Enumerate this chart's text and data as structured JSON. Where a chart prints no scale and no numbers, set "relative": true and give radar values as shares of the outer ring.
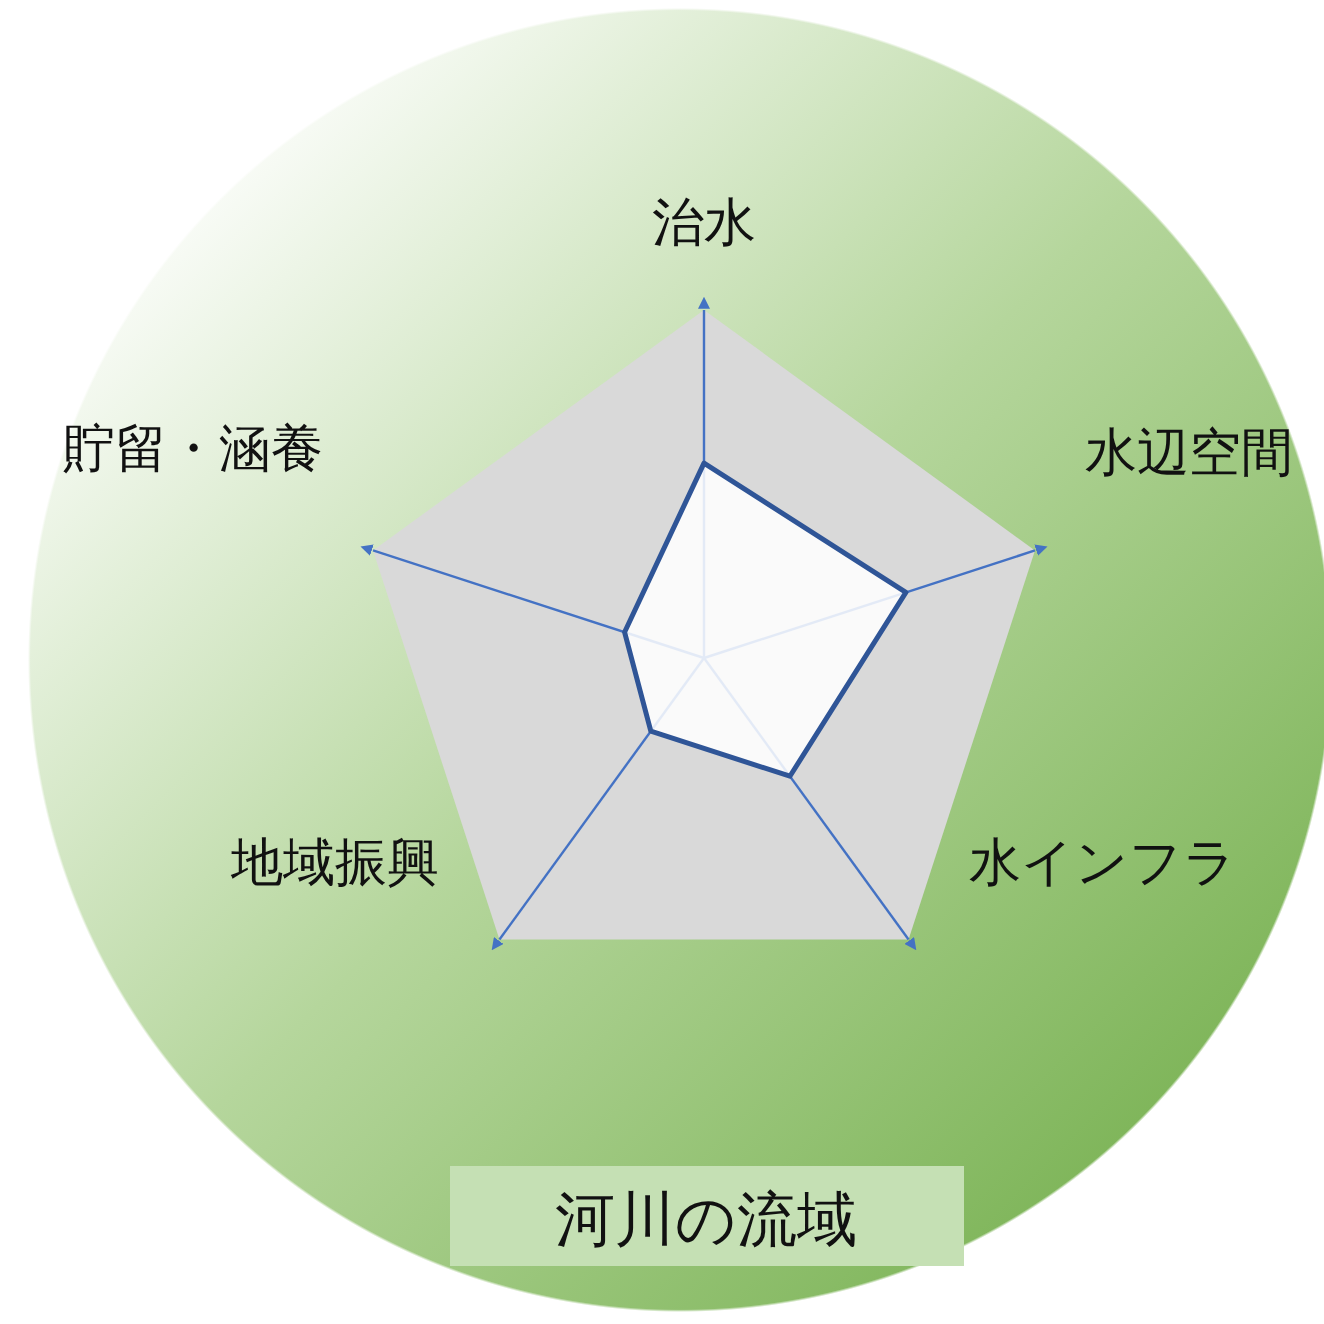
{
  "chart_data": {
    "type": "radar",
    "title": "河川の流域",
    "relative": true,
    "grid": true,
    "categories": [
      "治水",
      "水辺空間",
      "水インフラ",
      "地域振興",
      "貯留・涵養"
    ],
    "series": [
      {
        "color": "#2f5597",
        "values": [
          0.56,
          0.61,
          0.42,
          0.26,
          0.24
        ]
      }
    ]
  }
}
